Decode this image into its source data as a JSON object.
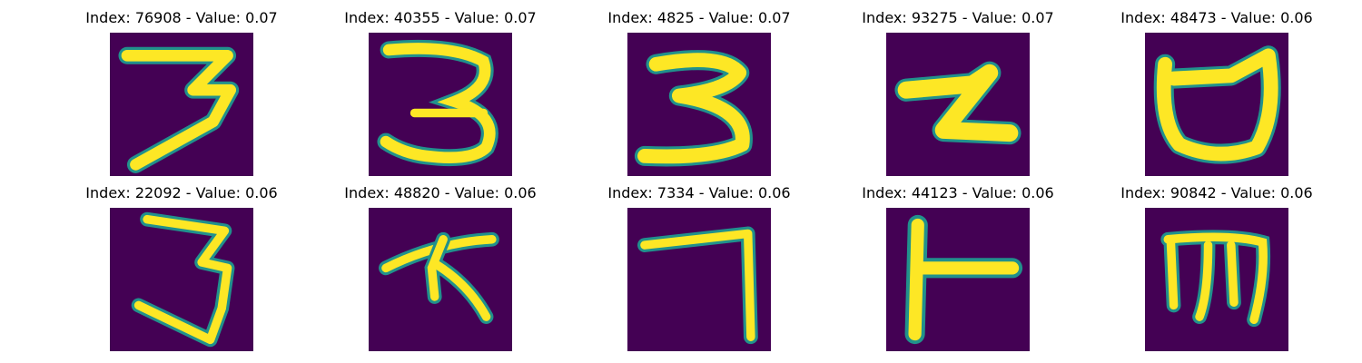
{
  "colors": {
    "background": "#440154",
    "foreground": "#fde725",
    "mid": "#21918c"
  },
  "panels": [
    {
      "title": "Index: 76908 - Value: 0.07",
      "glyph": "handwritten-3"
    },
    {
      "title": "Index: 40355 - Value: 0.07",
      "glyph": "handwritten-3"
    },
    {
      "title": "Index: 4825 - Value: 0.07",
      "glyph": "handwritten-3"
    },
    {
      "title": "Index: 93275 - Value: 0.07",
      "glyph": "handwritten-z"
    },
    {
      "title": "Index: 48473 - Value: 0.06",
      "glyph": "handwritten-cup"
    },
    {
      "title": "Index: 22092 - Value: 0.06",
      "glyph": "handwritten-3"
    },
    {
      "title": "Index: 48820 - Value: 0.06",
      "glyph": "handwritten-arrow-stroke"
    },
    {
      "title": "Index: 7334 - Value: 0.06",
      "glyph": "handwritten-7"
    },
    {
      "title": "Index: 44123 - Value: 0.06",
      "glyph": "handwritten-t-stroke"
    },
    {
      "title": "Index: 90842 - Value: 0.06",
      "glyph": "handwritten-m"
    }
  ]
}
